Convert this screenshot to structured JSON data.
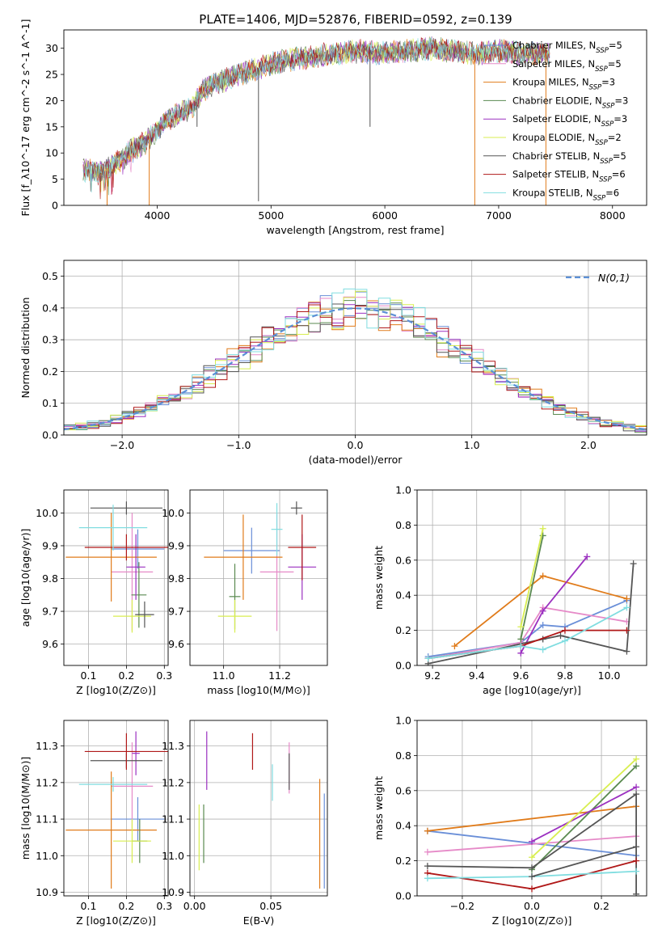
{
  "figure": {
    "title": "PLATE=1406, MJD=52876, FIBERID=0592, z=0.139"
  },
  "colors": {
    "Chabrier MILES": "#6a8fd8",
    "Salpeter MILES": "#e68ac8",
    "Kroupa MILES": "#e07b1a",
    "Chabrier ELODIE": "#5a8a50",
    "Salpeter ELODIE": "#9b30c0",
    "Kroupa ELODIE": "#d8ee50",
    "Chabrier STELIB": "#555555",
    "Salpeter STELIB": "#b01818",
    "Kroupa STELIB": "#80dde0"
  },
  "chart_data": [
    {
      "id": "spectrum",
      "type": "line",
      "xlabel": "wavelength [Angstrom, rest frame]",
      "ylabel": "Flux [f_λ10^-17 erg cm^-2 s^-1 A^-1]",
      "xlim": [
        3180,
        8300
      ],
      "ylim": [
        0,
        33.5
      ],
      "xticks": [
        4000,
        5000,
        6000,
        7000,
        8000
      ],
      "yticks": [
        0,
        5,
        10,
        15,
        20,
        25,
        30
      ],
      "grid": false,
      "legend_position": "top-right",
      "continuum": {
        "x": [
          3350,
          3500,
          3600,
          3700,
          3800,
          3900,
          4000,
          4100,
          4200,
          4300,
          4400,
          4600,
          4800,
          5000,
          5200,
          5400,
          5600,
          5800,
          6000,
          6200,
          6400,
          6600,
          6800,
          7000,
          7200,
          7400
        ],
        "y": [
          6.8,
          6.5,
          7.5,
          9.0,
          11.0,
          12.0,
          14.5,
          16.5,
          17.5,
          18.5,
          22.0,
          24.0,
          25.5,
          27.0,
          28.0,
          28.5,
          29.0,
          29.5,
          29.0,
          29.5,
          30.0,
          29.5,
          29.0,
          29.5,
          29.0,
          29.0
        ]
      },
      "series": [
        {
          "name": "Chabrier MILES, N_SSP=5",
          "legend_main": "Chabrier MILES, N",
          "legend_sub": "SSP",
          "legend_tail": "=5"
        },
        {
          "name": "Salpeter MILES, N_SSP=5",
          "legend_main": "Salpeter MILES, N",
          "legend_sub": "SSP",
          "legend_tail": "=5"
        },
        {
          "name": "Kroupa MILES, N_SSP=3",
          "legend_main": "Kroupa MILES, N",
          "legend_sub": "SSP",
          "legend_tail": "=3"
        },
        {
          "name": "Chabrier ELODIE, N_SSP=3",
          "legend_main": "Chabrier ELODIE, N",
          "legend_sub": "SSP",
          "legend_tail": "=3"
        },
        {
          "name": "Salpeter ELODIE, N_SSP=3",
          "legend_main": "Salpeter ELODIE, N",
          "legend_sub": "SSP",
          "legend_tail": "=3"
        },
        {
          "name": "Kroupa ELODIE, N_SSP=2",
          "legend_main": "Kroupa ELODIE, N",
          "legend_sub": "SSP",
          "legend_tail": "=2"
        },
        {
          "name": "Chabrier STELIB, N_SSP=5",
          "legend_main": "Chabrier STELIB, N",
          "legend_sub": "SSP",
          "legend_tail": "=5"
        },
        {
          "name": "Salpeter STELIB, N_SSP=6",
          "legend_main": "Salpeter STELIB, N",
          "legend_sub": "SSP",
          "legend_tail": "=6"
        },
        {
          "name": "Kroupa STELIB, N_SSP=6",
          "legend_main": "Kroupa STELIB, N",
          "legend_sub": "SSP",
          "legend_tail": "=6"
        }
      ]
    },
    {
      "id": "residuals",
      "type": "histogram",
      "xlabel": "(data-model)/error",
      "ylabel": "Normed distribution",
      "xlim": [
        -2.5,
        2.5
      ],
      "ylim": [
        0,
        0.55
      ],
      "xticks": [
        -2,
        -1,
        0,
        1,
        2
      ],
      "yticks": [
        0.0,
        0.1,
        0.2,
        0.3,
        0.4,
        0.5
      ],
      "grid": true,
      "legend_position": "top-right",
      "legend_label": "N(0,1)",
      "bin_width": 0.1
    },
    {
      "id": "Z-age",
      "type": "errorbar",
      "xlabel": "Z [log10(Z/Z⊙)]",
      "ylabel": "age  [log10(age/yr)]",
      "xlim": [
        0.035,
        0.31
      ],
      "ylim": [
        9.535,
        10.07
      ],
      "xticks": [
        0.1,
        0.2,
        0.3
      ],
      "yticks": [
        9.6,
        9.7,
        9.8,
        9.9,
        10.0
      ],
      "grid": true,
      "points": [
        {
          "model": "Chabrier MILES",
          "x": 0.23,
          "y": 9.89,
          "xerr": 0.07,
          "yerr": 0.06
        },
        {
          "model": "Salpeter MILES",
          "x": 0.215,
          "y": 9.82,
          "xerr": 0.055,
          "yerr": 0.18
        },
        {
          "model": "Kroupa MILES",
          "x": 0.16,
          "y": 9.865,
          "xerr": 0.12,
          "yerr": 0.135
        },
        {
          "model": "Chabrier ELODIE",
          "x": 0.233,
          "y": 9.75,
          "xerr": 0.02,
          "yerr": 0.1
        },
        {
          "model": "Salpeter ELODIE",
          "x": 0.225,
          "y": 9.835,
          "xerr": 0.025,
          "yerr": 0.1
        },
        {
          "model": "Kroupa ELODIE",
          "x": 0.215,
          "y": 9.685,
          "xerr": 0.05,
          "yerr": 0.05
        },
        {
          "model": "Chabrier STELIB",
          "x": 0.2,
          "y": 10.015,
          "xerr": 0.095,
          "yerr": 0.02
        },
        {
          "model": "Salpeter STELIB",
          "x": 0.2,
          "y": 9.895,
          "xerr": 0.11,
          "yerr": 0.04
        },
        {
          "model": "Kroupa STELIB",
          "x": 0.165,
          "y": 9.955,
          "xerr": 0.09,
          "yerr": 0.07
        },
        {
          "model": "Chabrier STELIB",
          "x": 0.248,
          "y": 9.69,
          "xerr": 0.025,
          "yerr": 0.04
        }
      ]
    },
    {
      "id": "mass-age",
      "type": "errorbar",
      "xlabel": "mass [log10(M/M⊙)]",
      "ylabel": "",
      "xlim": [
        10.88,
        11.37
      ],
      "ylim": [
        9.535,
        10.07
      ],
      "xticks": [
        11.0,
        11.2
      ],
      "yticks": [
        9.6,
        9.7,
        9.8,
        9.9,
        10.0
      ],
      "grid": true,
      "points": [
        {
          "model": "Chabrier MILES",
          "x": 11.1,
          "y": 9.885,
          "xerr": 0.1,
          "yerr": 0.07
        },
        {
          "model": "Salpeter MILES",
          "x": 11.19,
          "y": 9.82,
          "xerr": 0.06,
          "yerr": 0.18
        },
        {
          "model": "Kroupa MILES",
          "x": 11.07,
          "y": 9.865,
          "xerr": 0.14,
          "yerr": 0.13
        },
        {
          "model": "Chabrier ELODIE",
          "x": 11.04,
          "y": 9.745,
          "xerr": 0.02,
          "yerr": 0.1
        },
        {
          "model": "Salpeter ELODIE",
          "x": 11.28,
          "y": 9.835,
          "xerr": 0.05,
          "yerr": 0.1
        },
        {
          "model": "Kroupa ELODIE",
          "x": 11.04,
          "y": 9.685,
          "xerr": 0.06,
          "yerr": 0.05
        },
        {
          "model": "Chabrier STELIB",
          "x": 11.26,
          "y": 10.015,
          "xerr": 0.02,
          "yerr": 0.02
        },
        {
          "model": "Salpeter STELIB",
          "x": 11.28,
          "y": 9.895,
          "xerr": 0.05,
          "yerr": 0.1
        },
        {
          "model": "Kroupa STELIB",
          "x": 11.19,
          "y": 9.95,
          "xerr": 0.02,
          "yerr": 0.08
        }
      ]
    },
    {
      "id": "age-weight",
      "type": "line",
      "xlabel": "age  [log10(age/yr)]",
      "ylabel": "mass weight",
      "xlim": [
        9.13,
        10.17
      ],
      "ylim": [
        0,
        1.0
      ],
      "xticks": [
        9.2,
        9.4,
        9.6,
        9.8,
        10.0
      ],
      "yticks": [
        0.0,
        0.2,
        0.4,
        0.6,
        0.8,
        1.0
      ],
      "grid": true,
      "series": [
        {
          "model": "Chabrier MILES",
          "x": [
            9.18,
            9.6,
            9.7,
            9.8,
            10.08
          ],
          "y": [
            0.05,
            0.13,
            0.23,
            0.22,
            0.37
          ]
        },
        {
          "model": "Salpeter MILES",
          "x": [
            9.18,
            9.6,
            9.7,
            10.08
          ],
          "y": [
            0.04,
            0.13,
            0.33,
            0.25
          ]
        },
        {
          "model": "Kroupa MILES",
          "x": [
            9.3,
            9.7,
            10.08
          ],
          "y": [
            0.11,
            0.51,
            0.38
          ]
        },
        {
          "model": "Chabrier ELODIE",
          "x": [
            9.6,
            9.7
          ],
          "y": [
            0.15,
            0.74
          ]
        },
        {
          "model": "Salpeter ELODIE",
          "x": [
            9.6,
            9.7,
            9.9
          ],
          "y": [
            0.07,
            0.31,
            0.62
          ]
        },
        {
          "model": "Kroupa ELODIE",
          "x": [
            9.6,
            9.7
          ],
          "y": [
            0.22,
            0.78
          ]
        },
        {
          "model": "Chabrier STELIB",
          "x": [
            9.18,
            9.7,
            9.78,
            10.08,
            10.11
          ],
          "y": [
            0.01,
            0.15,
            0.17,
            0.08,
            0.58
          ]
        },
        {
          "model": "Salpeter STELIB",
          "x": [
            9.18,
            9.6,
            9.8,
            10.08
          ],
          "y": [
            0.04,
            0.11,
            0.2,
            0.2
          ]
        },
        {
          "model": "Kroupa STELIB",
          "x": [
            9.18,
            9.6,
            9.7,
            9.8,
            10.08
          ],
          "y": [
            0.04,
            0.11,
            0.09,
            0.14,
            0.33
          ]
        }
      ]
    },
    {
      "id": "Z-mass",
      "type": "errorbar",
      "xlabel": "Z [log10(Z/Z⊙)]",
      "ylabel": "mass [log10(M/M⊙)]",
      "xlim": [
        0.035,
        0.31
      ],
      "ylim": [
        10.89,
        11.37
      ],
      "xticks": [
        0.1,
        0.2,
        0.3
      ],
      "yticks": [
        10.9,
        11.0,
        11.1,
        11.2,
        11.3
      ],
      "grid": true,
      "points": [
        {
          "model": "Chabrier MILES",
          "x": 0.23,
          "y": 11.1,
          "xerr": 0.07,
          "yerr": 0.06
        },
        {
          "model": "Salpeter MILES",
          "x": 0.215,
          "y": 11.19,
          "xerr": 0.055,
          "yerr": 0.12
        },
        {
          "model": "Kroupa MILES",
          "x": 0.16,
          "y": 11.07,
          "xerr": 0.12,
          "yerr": 0.16
        },
        {
          "model": "Chabrier ELODIE",
          "x": 0.235,
          "y": 11.04,
          "xerr": 0.02,
          "yerr": 0.06
        },
        {
          "model": "Salpeter ELODIE",
          "x": 0.225,
          "y": 11.28,
          "xerr": 0.01,
          "yerr": 0.06
        },
        {
          "model": "Kroupa ELODIE",
          "x": 0.215,
          "y": 11.04,
          "xerr": 0.05,
          "yerr": 0.06
        },
        {
          "model": "Chabrier STELIB",
          "x": 0.2,
          "y": 11.26,
          "xerr": 0.095,
          "yerr": 0.02
        },
        {
          "model": "Salpeter STELIB",
          "x": 0.2,
          "y": 11.285,
          "xerr": 0.11,
          "yerr": 0.05
        },
        {
          "model": "Kroupa STELIB",
          "x": 0.165,
          "y": 11.195,
          "xerr": 0.09,
          "yerr": 0.02
        }
      ]
    },
    {
      "id": "ebv-mass",
      "type": "errorbar",
      "xlabel": "E(B-V)",
      "ylabel": "",
      "xlim": [
        -0.003,
        0.087
      ],
      "ylim": [
        10.89,
        11.37
      ],
      "xticks": [
        0.0,
        0.05
      ],
      "yticks": [
        10.9,
        11.0,
        11.1,
        11.2,
        11.3
      ],
      "grid": true,
      "points": [
        {
          "model": "Chabrier MILES",
          "x": 0.085,
          "y": 11.04,
          "xerr": 0.0,
          "yerr": 0.13
        },
        {
          "model": "Salpeter MILES",
          "x": 0.062,
          "y": 11.24,
          "xerr": 0.0,
          "yerr": 0.07
        },
        {
          "model": "Kroupa MILES",
          "x": 0.082,
          "y": 11.06,
          "xerr": 0.0,
          "yerr": 0.15
        },
        {
          "model": "Chabrier ELODIE",
          "x": 0.006,
          "y": 11.06,
          "xerr": 0.0,
          "yerr": 0.08
        },
        {
          "model": "Salpeter ELODIE",
          "x": 0.008,
          "y": 11.26,
          "xerr": 0.0,
          "yerr": 0.08
        },
        {
          "model": "Kroupa ELODIE",
          "x": 0.003,
          "y": 11.05,
          "xerr": 0.0,
          "yerr": 0.09
        },
        {
          "model": "Chabrier STELIB",
          "x": 0.062,
          "y": 11.23,
          "xerr": 0.0,
          "yerr": 0.05
        },
        {
          "model": "Salpeter STELIB",
          "x": 0.038,
          "y": 11.285,
          "xerr": 0.0,
          "yerr": 0.05
        },
        {
          "model": "Kroupa STELIB",
          "x": 0.051,
          "y": 11.2,
          "xerr": 0.0,
          "yerr": 0.05
        }
      ]
    },
    {
      "id": "Z-weight",
      "type": "line",
      "xlabel": "Z [log10(Z/Z⊙)]",
      "ylabel": "mass weight",
      "xlim": [
        -0.33,
        0.33
      ],
      "ylim": [
        0,
        1.0
      ],
      "xticks": [
        -0.2,
        0.0,
        0.2
      ],
      "yticks": [
        0.0,
        0.2,
        0.4,
        0.6,
        0.8,
        1.0
      ],
      "grid": true,
      "series": [
        {
          "model": "Chabrier MILES",
          "x": [
            -0.3,
            0.3
          ],
          "y": [
            0.37,
            0.23
          ]
        },
        {
          "model": "Salpeter MILES",
          "x": [
            -0.3,
            0.3
          ],
          "y": [
            0.25,
            0.34
          ]
        },
        {
          "model": "Kroupa MILES",
          "x": [
            -0.3,
            0.3
          ],
          "y": [
            0.37,
            0.51
          ]
        },
        {
          "model": "Chabrier ELODIE",
          "x": [
            0.0,
            0.3
          ],
          "y": [
            0.15,
            0.74
          ]
        },
        {
          "model": "Salpeter ELODIE",
          "x": [
            0.0,
            0.3
          ],
          "y": [
            0.31,
            0.62
          ]
        },
        {
          "model": "Kroupa ELODIE",
          "x": [
            0.0,
            0.3
          ],
          "y": [
            0.22,
            0.78
          ]
        },
        {
          "model": "Chabrier STELIB",
          "x": [
            -0.3,
            0.0,
            0.3,
            0.3
          ],
          "y": [
            0.17,
            0.16,
            0.58,
            0.01
          ]
        },
        {
          "model": "Salpeter STELIB",
          "x": [
            -0.3,
            0.0,
            0.3
          ],
          "y": [
            0.13,
            0.04,
            0.2
          ]
        },
        {
          "model": "Kroupa STELIB",
          "x": [
            -0.3,
            0.0,
            0.3
          ],
          "y": [
            0.1,
            0.11,
            0.14
          ]
        },
        {
          "model": "Chabrier STELIB",
          "x": [
            0.0,
            0.3
          ],
          "y": [
            0.11,
            0.28
          ]
        }
      ]
    }
  ]
}
